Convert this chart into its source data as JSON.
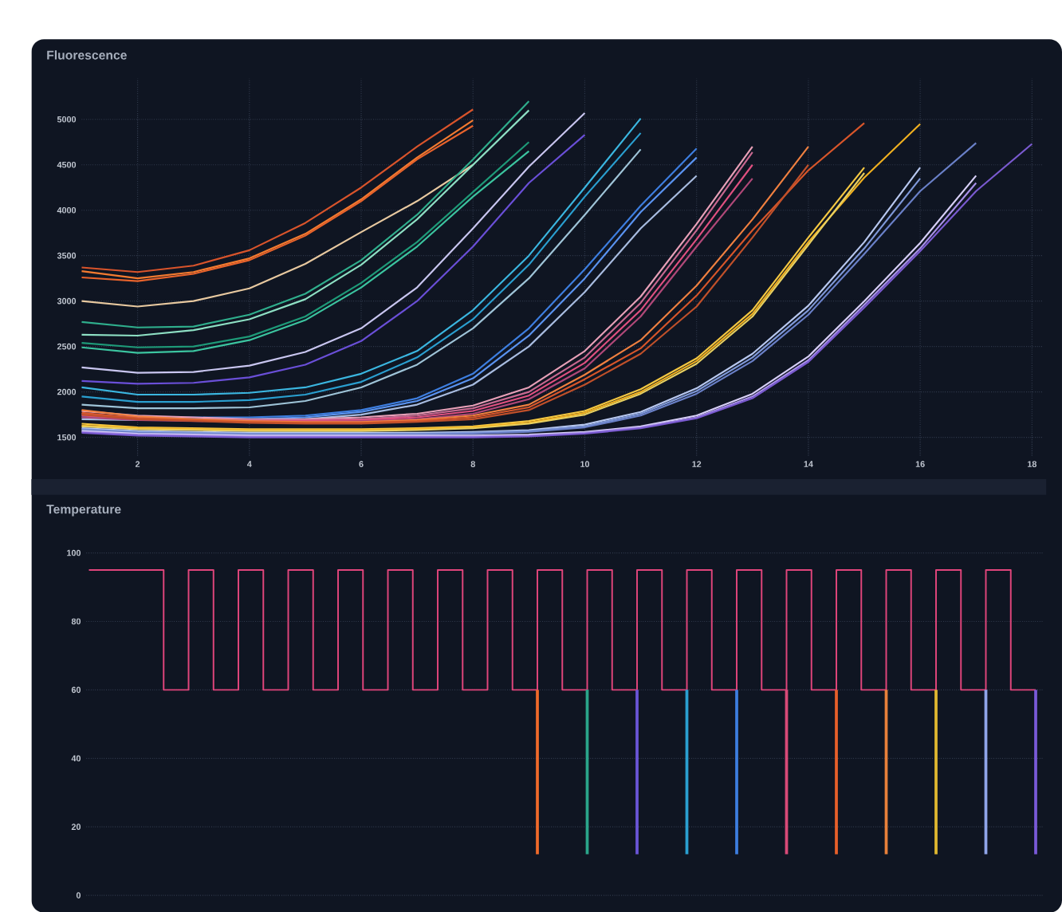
{
  "chart_data": [
    {
      "type": "line",
      "title": "Fluorescence",
      "x": [
        1,
        2,
        3,
        4,
        5,
        6,
        7,
        8,
        9,
        10,
        11,
        12,
        13,
        14,
        15,
        16,
        17,
        18
      ],
      "xlim": [
        1,
        18.2
      ],
      "ylim": [
        1300,
        5450
      ],
      "xticks": [
        2,
        4,
        6,
        8,
        10,
        12,
        14,
        16,
        18
      ],
      "yticks": [
        1500,
        2000,
        2500,
        3000,
        3500,
        4000,
        4500,
        5000
      ],
      "grid": true,
      "marker": "none",
      "line_style": "solid",
      "series": [
        {
          "color": "#d9542b",
          "values": [
            3370,
            3320,
            3390,
            3560,
            3860,
            4250,
            4700,
            5110,
            null,
            null,
            null,
            null,
            null,
            null,
            null,
            null,
            null,
            null
          ]
        },
        {
          "color": "#f47b30",
          "values": [
            3330,
            3250,
            3320,
            3470,
            3740,
            4120,
            4580,
            4990,
            null,
            null,
            null,
            null,
            null,
            null,
            null,
            null,
            null,
            null
          ]
        },
        {
          "color": "#e8632c",
          "values": [
            3260,
            3220,
            3300,
            3450,
            3720,
            4100,
            4560,
            4930,
            null,
            null,
            null,
            null,
            null,
            null,
            null,
            null,
            null,
            null
          ]
        },
        {
          "color": "#e8c9a0",
          "values": [
            3000,
            2940,
            3000,
            3140,
            3410,
            3760,
            4100,
            4500,
            null,
            null,
            null,
            null,
            null,
            null,
            null,
            null,
            null,
            null
          ]
        },
        {
          "color": "#2fae8c",
          "values": [
            2770,
            2710,
            2720,
            2850,
            3080,
            3450,
            3950,
            4560,
            5200,
            null,
            null,
            null,
            null,
            null,
            null,
            null,
            null,
            null
          ]
        },
        {
          "color": "#8ee0c4",
          "values": [
            2630,
            2620,
            2680,
            2800,
            3020,
            3400,
            3900,
            4500,
            5100,
            null,
            null,
            null,
            null,
            null,
            null,
            null,
            null,
            null
          ]
        },
        {
          "color": "#1e9a78",
          "values": [
            2540,
            2490,
            2500,
            2610,
            2830,
            3200,
            3650,
            4200,
            4750,
            null,
            null,
            null,
            null,
            null,
            null,
            null,
            null,
            null
          ]
        },
        {
          "color": "#3cc5a0",
          "values": [
            2490,
            2430,
            2450,
            2570,
            2790,
            3150,
            3600,
            4150,
            4650,
            null,
            null,
            null,
            null,
            null,
            null,
            null,
            null,
            null
          ]
        },
        {
          "color": "#c9c6f0",
          "values": [
            2270,
            2210,
            2220,
            2290,
            2440,
            2700,
            3150,
            3800,
            4480,
            5070,
            null,
            null,
            null,
            null,
            null,
            null,
            null,
            null
          ]
        },
        {
          "color": "#6a4fd8",
          "values": [
            2120,
            2090,
            2100,
            2160,
            2300,
            2560,
            3000,
            3600,
            4300,
            4830,
            null,
            null,
            null,
            null,
            null,
            null,
            null,
            null
          ]
        },
        {
          "color": "#3bb6e0",
          "values": [
            2050,
            1970,
            1970,
            1990,
            2050,
            2200,
            2450,
            2900,
            3500,
            4250,
            5010,
            null,
            null,
            null,
            null,
            null,
            null,
            null
          ]
        },
        {
          "color": "#2a9fd0",
          "values": [
            1950,
            1890,
            1890,
            1910,
            1970,
            2110,
            2380,
            2800,
            3400,
            4150,
            4850,
            null,
            null,
            null,
            null,
            null,
            null,
            null
          ]
        },
        {
          "color": "#9fc4d8",
          "values": [
            1860,
            1820,
            1820,
            1830,
            1900,
            2050,
            2300,
            2700,
            3250,
            3950,
            4670,
            null,
            null,
            null,
            null,
            null,
            null,
            null
          ]
        },
        {
          "color": "#3d7ee0",
          "values": [
            1740,
            1720,
            1720,
            1720,
            1740,
            1800,
            1930,
            2200,
            2700,
            3350,
            4050,
            4680,
            null,
            null,
            null,
            null,
            null,
            null
          ]
        },
        {
          "color": "#5a93f0",
          "values": [
            1720,
            1700,
            1700,
            1700,
            1720,
            1780,
            1900,
            2150,
            2620,
            3250,
            3980,
            4580,
            null,
            null,
            null,
            null,
            null,
            null
          ]
        },
        {
          "color": "#a8bce0",
          "values": [
            1700,
            1690,
            1690,
            1690,
            1700,
            1750,
            1860,
            2080,
            2500,
            3100,
            3800,
            4380,
            null,
            null,
            null,
            null,
            null,
            null
          ]
        },
        {
          "color": "#e8a0b8",
          "values": [
            1790,
            1740,
            1720,
            1700,
            1700,
            1720,
            1760,
            1850,
            2050,
            2450,
            3050,
            3850,
            4700,
            null,
            null,
            null,
            null,
            null
          ]
        },
        {
          "color": "#c86890",
          "values": [
            1760,
            1720,
            1700,
            1690,
            1690,
            1700,
            1740,
            1820,
            2000,
            2380,
            2980,
            3780,
            4640,
            null,
            null,
            null,
            null,
            null
          ]
        },
        {
          "color": "#e05080",
          "values": [
            1740,
            1700,
            1690,
            1680,
            1680,
            1690,
            1720,
            1790,
            1960,
            2320,
            2900,
            3680,
            4500,
            null,
            null,
            null,
            null,
            null
          ]
        },
        {
          "color": "#b04878",
          "values": [
            1720,
            1690,
            1680,
            1670,
            1670,
            1680,
            1700,
            1760,
            1920,
            2260,
            2830,
            3600,
            4350,
            null,
            null,
            null,
            null,
            null
          ]
        },
        {
          "color": "#f08040",
          "values": [
            1800,
            1730,
            1700,
            1680,
            1670,
            1670,
            1690,
            1740,
            1860,
            2190,
            2570,
            3170,
            3900,
            4700,
            null,
            null,
            null,
            null
          ]
        },
        {
          "color": "#d8562a",
          "values": [
            1770,
            1710,
            1690,
            1670,
            1660,
            1660,
            1680,
            1720,
            1830,
            2140,
            2480,
            3060,
            3780,
            4440,
            4960,
            null,
            null,
            null
          ]
        },
        {
          "color": "#c0502a",
          "values": [
            1750,
            1700,
            1680,
            1660,
            1650,
            1650,
            1670,
            1700,
            1800,
            2080,
            2420,
            2940,
            3700,
            4500,
            null,
            null,
            null,
            null
          ]
        },
        {
          "color": "#f5c842",
          "values": [
            1650,
            1610,
            1600,
            1590,
            1590,
            1590,
            1600,
            1620,
            1680,
            1790,
            2030,
            2370,
            2900,
            3700,
            4470,
            null,
            null,
            null
          ]
        },
        {
          "color": "#f0b020",
          "values": [
            1630,
            1600,
            1590,
            1580,
            1580,
            1580,
            1590,
            1610,
            1660,
            1770,
            2000,
            2340,
            2860,
            3650,
            4360,
            4950,
            null,
            null
          ]
        },
        {
          "color": "#e8d060",
          "values": [
            1620,
            1590,
            1580,
            1570,
            1570,
            1570,
            1580,
            1600,
            1650,
            1750,
            1980,
            2310,
            2830,
            3620,
            4410,
            null,
            null,
            null
          ]
        },
        {
          "color": "#b8c8f0",
          "values": [
            1600,
            1570,
            1560,
            1550,
            1550,
            1550,
            1550,
            1560,
            1580,
            1640,
            1780,
            2040,
            2420,
            2950,
            3650,
            4470,
            null,
            null
          ]
        },
        {
          "color": "#7f98d8",
          "values": [
            1590,
            1560,
            1550,
            1540,
            1540,
            1540,
            1540,
            1550,
            1570,
            1620,
            1760,
            2010,
            2380,
            2900,
            3580,
            4350,
            null,
            null
          ]
        },
        {
          "color": "#6a80c8",
          "values": [
            1580,
            1550,
            1540,
            1530,
            1530,
            1530,
            1530,
            1540,
            1560,
            1610,
            1740,
            1980,
            2340,
            2850,
            3520,
            4210,
            4740,
            null
          ]
        },
        {
          "color": "#d8d0f8",
          "values": [
            1570,
            1540,
            1530,
            1520,
            1520,
            1520,
            1520,
            1520,
            1530,
            1560,
            1620,
            1740,
            1980,
            2390,
            3000,
            3640,
            4380,
            null
          ]
        },
        {
          "color": "#a890e8",
          "values": [
            1560,
            1530,
            1520,
            1510,
            1510,
            1510,
            1510,
            1510,
            1520,
            1550,
            1610,
            1720,
            1950,
            2350,
            2960,
            3580,
            4300,
            null
          ]
        },
        {
          "color": "#7a5ad0",
          "values": [
            1550,
            1520,
            1510,
            1500,
            1500,
            1500,
            1500,
            1500,
            1510,
            1540,
            1600,
            1710,
            1930,
            2330,
            2930,
            3550,
            4210,
            4730
          ]
        }
      ]
    },
    {
      "type": "step",
      "title": "Temperature",
      "categories": [
        null,
        null,
        null,
        null,
        null,
        null,
        null,
        null,
        null,
        null,
        null,
        null,
        null,
        null,
        null,
        null,
        null,
        null,
        null,
        null,
        null,
        null,
        null,
        null,
        null,
        null,
        null,
        null,
        null,
        null,
        null,
        null,
        null,
        null,
        null,
        null,
        null,
        null,
        null
      ],
      "ylim": [
        0,
        100
      ],
      "yticks": [
        0,
        20,
        40,
        60,
        80,
        100
      ],
      "tick_labels": "y",
      "grid": "y",
      "marker": "none",
      "line_style": "solid",
      "series": [
        {
          "color": "#e0457b",
          "values": [
            95,
            95,
            95,
            60,
            95,
            60,
            95,
            60,
            95,
            60,
            95,
            60,
            95,
            60,
            95,
            60,
            95,
            60,
            95,
            60,
            95,
            60,
            95,
            60,
            95,
            60,
            95,
            60,
            95,
            60,
            95,
            60,
            95,
            60,
            95,
            60,
            95,
            60,
            60
          ]
        },
        {
          "type": "bar",
          "base": [
            null,
            null,
            null,
            null,
            null,
            null,
            null,
            null,
            null,
            null,
            null,
            null,
            null,
            null,
            null,
            null,
            null,
            null,
            12,
            null,
            12,
            null,
            12,
            null,
            12,
            null,
            12,
            null,
            12,
            null,
            12,
            null,
            12,
            null,
            12,
            null,
            12,
            null,
            12
          ],
          "values": [
            null,
            null,
            null,
            null,
            null,
            null,
            null,
            null,
            null,
            null,
            null,
            null,
            null,
            null,
            null,
            null,
            null,
            null,
            48,
            null,
            48,
            null,
            48,
            null,
            48,
            null,
            48,
            null,
            48,
            null,
            48,
            null,
            48,
            null,
            48,
            null,
            48,
            null,
            48
          ],
          "colors": [
            null,
            null,
            null,
            null,
            null,
            null,
            null,
            null,
            null,
            null,
            null,
            null,
            null,
            null,
            null,
            null,
            null,
            null,
            "#f06a2a",
            null,
            "#2aa58a",
            null,
            "#6a55d8",
            null,
            "#2a9fd0",
            null,
            "#3d7ee0",
            null,
            "#d84a78",
            null,
            "#e8602a",
            null,
            "#e8803a",
            null,
            "#e0b830",
            null,
            "#8fa4e8",
            null,
            "#7a5ad8"
          ]
        }
      ]
    }
  ]
}
